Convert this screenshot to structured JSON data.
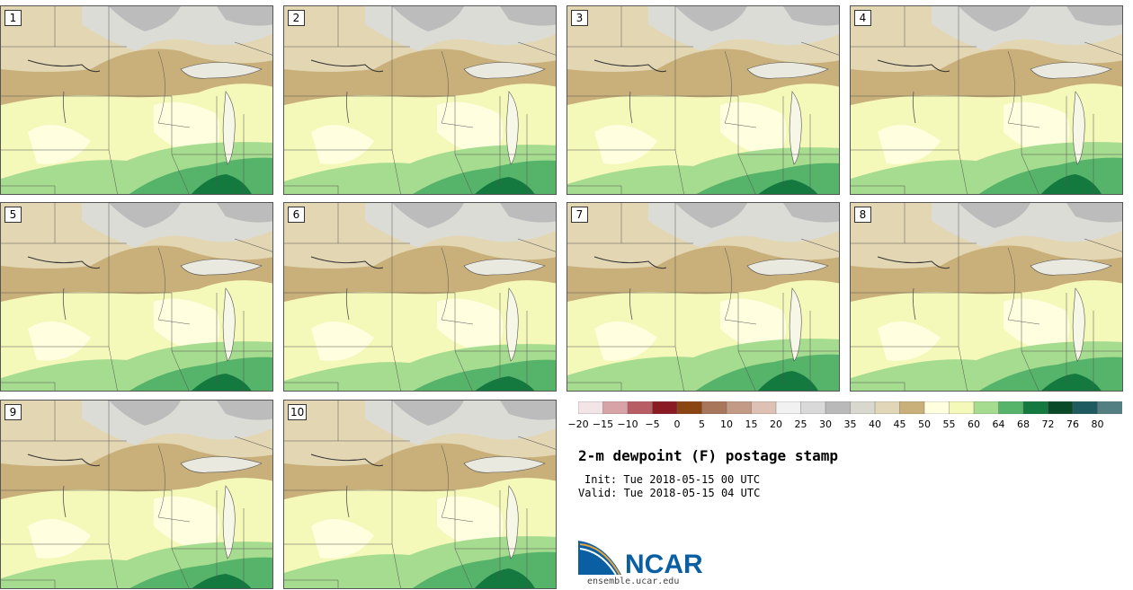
{
  "panels": [
    {
      "label": "1"
    },
    {
      "label": "2"
    },
    {
      "label": "3"
    },
    {
      "label": "4"
    },
    {
      "label": "5"
    },
    {
      "label": "6"
    },
    {
      "label": "7"
    },
    {
      "label": "8"
    },
    {
      "label": "9"
    },
    {
      "label": "10"
    }
  ],
  "colorbar": {
    "ticks": [
      "−20",
      "−15",
      "−10",
      "−5",
      "0",
      "5",
      "10",
      "15",
      "20",
      "25",
      "30",
      "35",
      "40",
      "45",
      "50",
      "55",
      "60",
      "64",
      "68",
      "72",
      "76",
      "80"
    ],
    "colors": [
      "#f3e4e7",
      "#d8a3a7",
      "#b75d63",
      "#8a1a24",
      "#8b4513",
      "#a8765a",
      "#c39a85",
      "#dfc0b5",
      "#f1f1f1",
      "#d9d9d9",
      "#b9b9b9",
      "#d8d8cf",
      "#e2d6b8",
      "#c9b07a",
      "#ffffe0",
      "#f4f8b8",
      "#a6dc8f",
      "#56b36a",
      "#14793f",
      "#0b4a28",
      "#1f5a60",
      "#537f83"
    ]
  },
  "title": "2-m dewpoint (F) postage stamp",
  "init": "Init: Tue 2018-05-15 00 UTC",
  "valid": "Valid: Tue 2018-05-15 04 UTC",
  "logo": {
    "text": "NCAR",
    "url": "ensemble.ucar.edu",
    "color": "#0a5fa3"
  },
  "legend_colors": {
    "dry_gray": "#bcbcbc",
    "light_gray": "#dcdcd6",
    "tan": "#c9b07a",
    "pale_tan": "#e3d6b3",
    "cream": "#ffffe0",
    "pale_yellow": "#f4f8b8",
    "light_green": "#a6dc8f",
    "green": "#56b36a",
    "dark_green": "#14793f"
  }
}
